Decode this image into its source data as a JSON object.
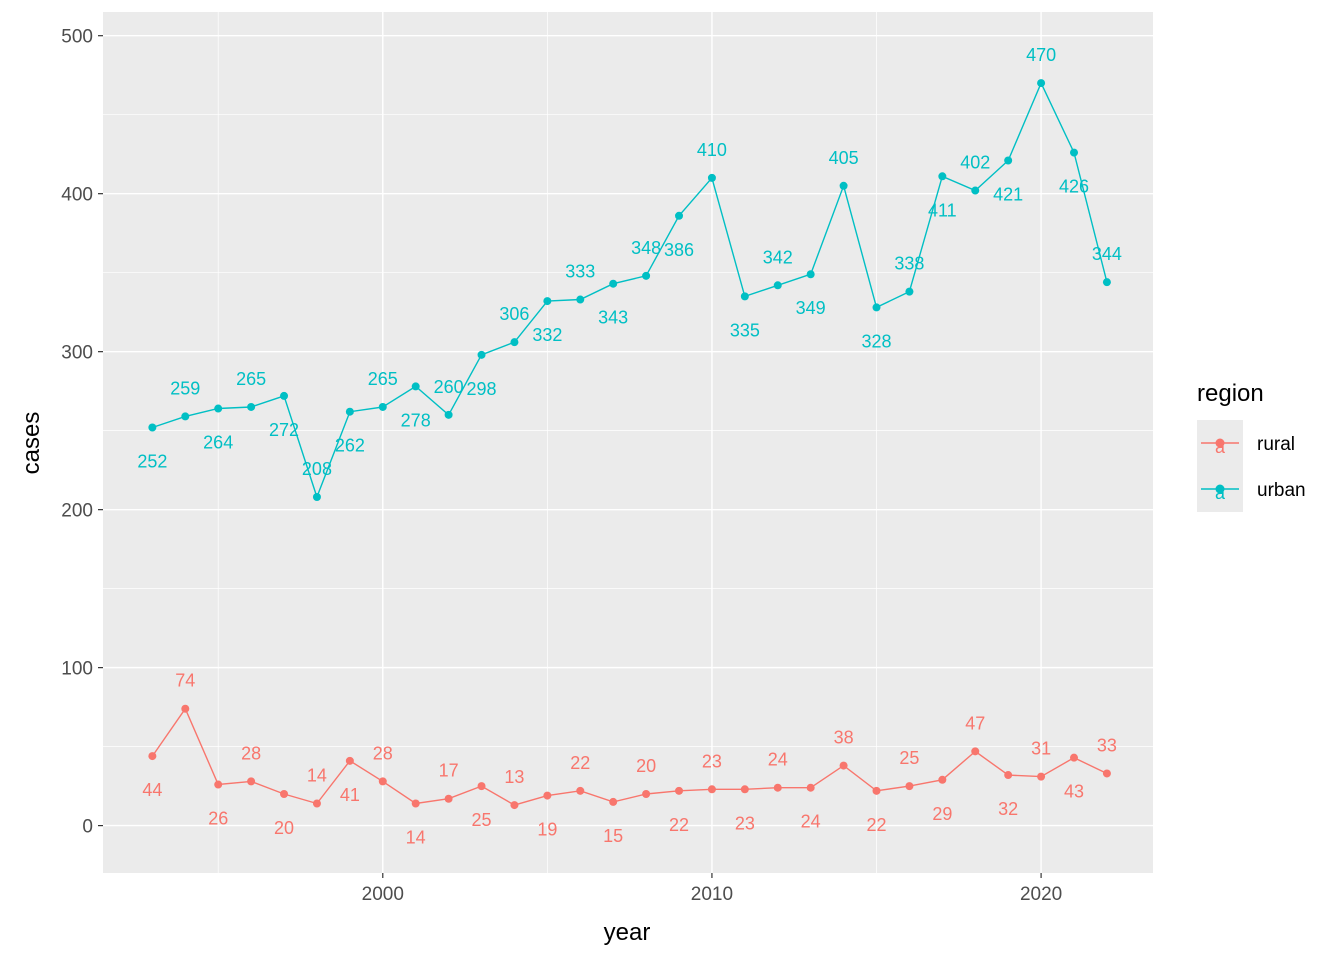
{
  "chart_data": {
    "type": "line",
    "xlabel": "year",
    "ylabel": "cases",
    "xlim": [
      1991.5,
      2023.4
    ],
    "ylim": [
      -30,
      515
    ],
    "x_ticks": [
      2000,
      2010,
      2020
    ],
    "y_ticks": [
      0,
      100,
      200,
      300,
      400,
      500
    ],
    "grid": true,
    "panel_background": "#ebebeb",
    "legend": {
      "title": "region",
      "position": "right"
    },
    "x": [
      1993,
      1994,
      1995,
      1996,
      1997,
      1998,
      1999,
      2000,
      2001,
      2002,
      2003,
      2004,
      2005,
      2006,
      2007,
      2008,
      2009,
      2010,
      2011,
      2012,
      2013,
      2014,
      2015,
      2016,
      2017,
      2018,
      2019,
      2020,
      2021,
      2022
    ],
    "series": [
      {
        "name": "rural",
        "color": "#f8766d",
        "values": [
          44,
          74,
          26,
          28,
          20,
          14,
          41,
          28,
          14,
          17,
          25,
          13,
          19,
          22,
          15,
          20,
          22,
          23,
          23,
          24,
          24,
          38,
          22,
          25,
          29,
          47,
          32,
          31,
          43,
          33
        ],
        "label_side": [
          "below",
          "above",
          "below",
          "above",
          "below",
          "above",
          "below",
          "above",
          "below",
          "above",
          "below",
          "above",
          "below",
          "above",
          "below",
          "above",
          "below",
          "above",
          "below",
          "above",
          "below",
          "above",
          "below",
          "above",
          "below",
          "above",
          "below",
          "above",
          "below",
          "above"
        ]
      },
      {
        "name": "urban",
        "color": "#00bfc4",
        "values": [
          252,
          259,
          264,
          265,
          272,
          208,
          262,
          265,
          278,
          260,
          298,
          306,
          332,
          333,
          343,
          348,
          386,
          410,
          335,
          342,
          349,
          405,
          328,
          338,
          411,
          402,
          421,
          470,
          426,
          344
        ],
        "label_side": [
          "below",
          "above",
          "below",
          "above",
          "below",
          "above",
          "below",
          "above",
          "below",
          "above",
          "below",
          "above",
          "below",
          "above",
          "below",
          "above",
          "below",
          "above",
          "below",
          "above",
          "below",
          "above",
          "below",
          "above",
          "below",
          "above",
          "below",
          "above",
          "below",
          "above"
        ]
      }
    ]
  }
}
